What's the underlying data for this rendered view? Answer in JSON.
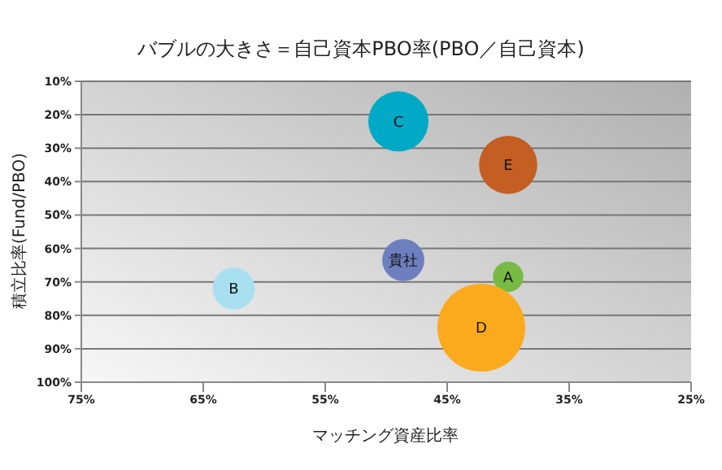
{
  "chart_data": {
    "type": "bubble",
    "title": "バブルの大きさ＝自己資本PBO率(PBO／自己資本)",
    "xlabel": "マッチング資産比率",
    "ylabel": "積立比率(Fund/PBO)",
    "xlim": [
      75,
      25
    ],
    "xticks": [
      {
        "value": 75,
        "label": "75%"
      },
      {
        "value": 65,
        "label": "65%"
      },
      {
        "value": 55,
        "label": "55%"
      },
      {
        "value": 45,
        "label": "45%"
      },
      {
        "value": 35,
        "label": "35%"
      },
      {
        "value": 25,
        "label": "25%"
      }
    ],
    "ylim": [
      100,
      10
    ],
    "yticks": [
      {
        "value": 10,
        "label": "10%"
      },
      {
        "value": 20,
        "label": "20%"
      },
      {
        "value": 30,
        "label": "30%"
      },
      {
        "value": 40,
        "label": "40%"
      },
      {
        "value": 50,
        "label": "50%"
      },
      {
        "value": 60,
        "label": "60%"
      },
      {
        "value": 70,
        "label": "70%"
      },
      {
        "value": 80,
        "label": "80%"
      },
      {
        "value": 90,
        "label": "90%"
      },
      {
        "value": 100,
        "label": "100%"
      }
    ],
    "grid": "y",
    "series": [
      {
        "name": "C",
        "color": "#00a9c6",
        "x": [
          49
        ],
        "values": [
          22
        ],
        "sizes": [
          0.47
        ]
      },
      {
        "name": "E",
        "color": "#c45e23",
        "x": [
          40
        ],
        "values": [
          35
        ],
        "sizes": [
          0.44
        ]
      },
      {
        "name": "貴社",
        "color": "#6e7fbf",
        "x": [
          48.6
        ],
        "values": [
          63.5
        ],
        "sizes": [
          0.23
        ]
      },
      {
        "name": "A",
        "color": "#77bb44",
        "x": [
          40
        ],
        "values": [
          68.5
        ],
        "sizes": [
          0.12
        ]
      },
      {
        "name": "B",
        "color": "#a8e0ef",
        "x": [
          62.5
        ],
        "values": [
          72
        ],
        "sizes": [
          0.23
        ]
      },
      {
        "name": "D",
        "color": "#fbaa1e",
        "x": [
          42.2
        ],
        "values": [
          83.7
        ],
        "sizes": [
          1
        ]
      }
    ]
  }
}
